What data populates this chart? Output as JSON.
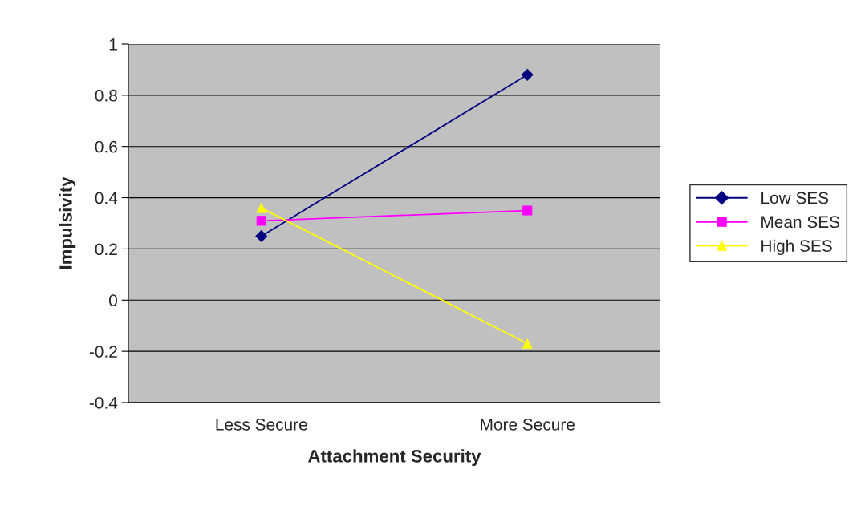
{
  "chart_data": {
    "type": "line",
    "xlabel": "Attachment Security",
    "ylabel": "Impulsivity",
    "categories": [
      "Less Secure",
      "More Secure"
    ],
    "series": [
      {
        "name": "Low SES",
        "color": "#000080",
        "marker": "diamond",
        "values": [
          0.25,
          0.88
        ]
      },
      {
        "name": "Mean SES",
        "color": "#ff00ff",
        "marker": "square",
        "values": [
          0.31,
          0.35
        ]
      },
      {
        "name": "High SES",
        "color": "#ffff00",
        "marker": "triangle",
        "values": [
          0.36,
          -0.17
        ]
      }
    ],
    "ylim": [
      -0.4,
      1
    ],
    "yticks": [
      -0.4,
      -0.2,
      0,
      0.2,
      0.4,
      0.6,
      0.8,
      1
    ],
    "grid": "y",
    "legend": "right"
  }
}
